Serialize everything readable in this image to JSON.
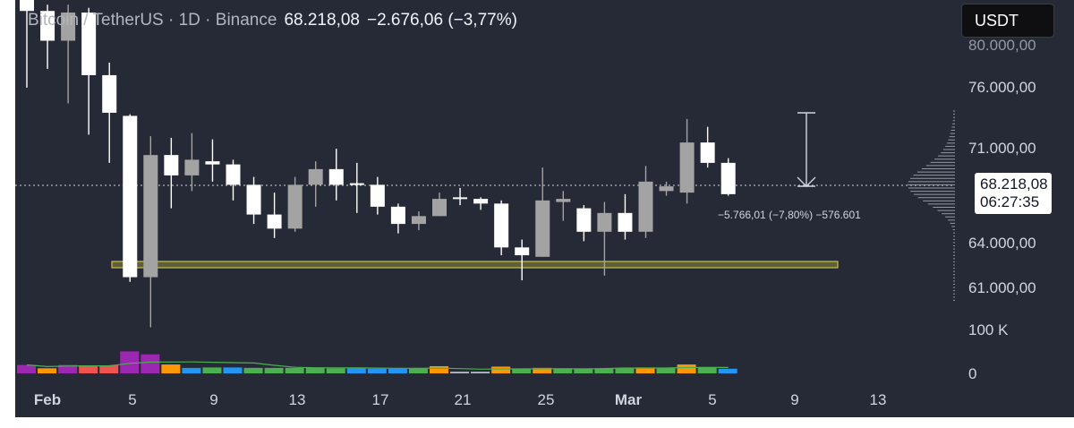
{
  "header": {
    "symbol": "Bitcoin / TetherUS · 1D · Binance",
    "last_price": "68.218,08",
    "change": "−2.676,06 (−3,77%)"
  },
  "toolbar": {
    "currency_label": "USDT"
  },
  "price_axis": {
    "labels": [
      "76.000,00",
      "71.000,00",
      "64.000,00",
      "61.000,00"
    ],
    "partial_top_label": "80.000,00",
    "current_price": "68.218,08",
    "countdown": "06:27:35"
  },
  "volume_axis": {
    "labels": [
      "100 K",
      "0"
    ]
  },
  "time_axis": {
    "labels": [
      "Feb",
      "5",
      "9",
      "13",
      "17",
      "21",
      "25",
      "Mar",
      "5",
      "9",
      "13"
    ],
    "bold": [
      true,
      false,
      false,
      false,
      false,
      false,
      false,
      true,
      false,
      false,
      false
    ]
  },
  "measure_label": "−5.766,01 (−7,80%) −576.601",
  "colors": {
    "background": "#262a36",
    "up_candle": "#a3a3a3",
    "down_candle": "#ffffff",
    "support_zone": "#c8c247",
    "volume_purple": "#9c27b0",
    "volume_red": "#ef5350",
    "volume_orange": "#ff9800",
    "volume_green": "#4caf50",
    "volume_blue": "#2196f3",
    "volume_grey": "#b2b5be",
    "volume_ma_line": "#4caf50"
  },
  "chart_data": {
    "type": "candlestick",
    "interval": "1D",
    "ylim": [
      58300,
      80600
    ],
    "candles": [
      {
        "label": "Jan 31",
        "open": 83500,
        "high": 84000,
        "low": 75000,
        "close": 79900
      },
      {
        "label": "Feb 1",
        "open": 79900,
        "high": 80300,
        "low": 76200,
        "close": 78000
      },
      {
        "label": "Feb 2",
        "open": 78000,
        "high": 80300,
        "low": 74000,
        "close": 79800
      },
      {
        "label": "Feb 3",
        "open": 79800,
        "high": 80100,
        "low": 72000,
        "close": 75800
      },
      {
        "label": "Feb 4",
        "open": 75800,
        "high": 76600,
        "low": 70200,
        "close": 73400
      },
      {
        "label": "Feb 5",
        "open": 73200,
        "high": 73300,
        "low": 62600,
        "close": 62900
      },
      {
        "label": "Feb 6",
        "open": 62900,
        "high": 71900,
        "low": 59700,
        "close": 70700
      },
      {
        "label": "Feb 7",
        "open": 70700,
        "high": 71800,
        "low": 67300,
        "close": 69400
      },
      {
        "label": "Feb 8",
        "open": 69400,
        "high": 72100,
        "low": 68400,
        "close": 70400
      },
      {
        "label": "Feb 9",
        "open": 70300,
        "high": 71700,
        "low": 69000,
        "close": 70100
      },
      {
        "label": "Feb 10",
        "open": 70100,
        "high": 70400,
        "low": 67800,
        "close": 68800
      },
      {
        "label": "Feb 11",
        "open": 68800,
        "high": 69300,
        "low": 66300,
        "close": 66900
      },
      {
        "label": "Feb 12",
        "open": 66900,
        "high": 68300,
        "low": 65400,
        "close": 66000
      },
      {
        "label": "Feb 13",
        "open": 66000,
        "high": 69300,
        "low": 65800,
        "close": 68800
      },
      {
        "label": "Feb 14",
        "open": 68800,
        "high": 70300,
        "low": 67400,
        "close": 69800
      },
      {
        "label": "Feb 15",
        "open": 69800,
        "high": 71100,
        "low": 67800,
        "close": 68800
      },
      {
        "label": "Feb 16",
        "open": 68900,
        "high": 70200,
        "low": 67000,
        "close": 68800
      },
      {
        "label": "Feb 17",
        "open": 68800,
        "high": 69300,
        "low": 66900,
        "close": 67400
      },
      {
        "label": "Feb 18",
        "open": 67400,
        "high": 67600,
        "low": 65700,
        "close": 66300
      },
      {
        "label": "Feb 19",
        "open": 66300,
        "high": 67100,
        "low": 65900,
        "close": 66800
      },
      {
        "label": "Feb 20",
        "open": 66800,
        "high": 68300,
        "low": 66800,
        "close": 67900
      },
      {
        "label": "Feb 21",
        "open": 68000,
        "high": 68600,
        "low": 67500,
        "close": 67900
      },
      {
        "label": "Feb 22",
        "open": 67900,
        "high": 68000,
        "low": 67200,
        "close": 67600
      },
      {
        "label": "Feb 23",
        "open": 67600,
        "high": 67800,
        "low": 64300,
        "close": 64800
      },
      {
        "label": "Feb 24",
        "open": 64800,
        "high": 65300,
        "low": 62700,
        "close": 64300
      },
      {
        "label": "Feb 25",
        "open": 64200,
        "high": 69900,
        "low": 64200,
        "close": 67800
      },
      {
        "label": "Feb 26",
        "open": 67700,
        "high": 68400,
        "low": 66500,
        "close": 67900
      },
      {
        "label": "Feb 27",
        "open": 67300,
        "high": 67500,
        "low": 65200,
        "close": 65800
      },
      {
        "label": "Feb 28",
        "open": 65800,
        "high": 67700,
        "low": 63000,
        "close": 67000
      },
      {
        "label": "Mar 1",
        "open": 67000,
        "high": 68200,
        "low": 65300,
        "close": 65800
      },
      {
        "label": "Mar 2",
        "open": 65800,
        "high": 70000,
        "low": 65400,
        "close": 69000
      },
      {
        "label": "Mar 3",
        "open": 68400,
        "high": 69000,
        "low": 68100,
        "close": 68700
      },
      {
        "label": "Mar 4",
        "open": 68300,
        "high": 73000,
        "low": 67600,
        "close": 71500
      },
      {
        "label": "Mar 5",
        "open": 71500,
        "high": 72500,
        "low": 69900,
        "close": 70200
      },
      {
        "label": "Mar 6",
        "open": 70200,
        "high": 70500,
        "low": 68100,
        "close": 68200
      }
    ],
    "volume": [
      20,
      12,
      20,
      19,
      19,
      52,
      45,
      21,
      13,
      14,
      14,
      13,
      13,
      13,
      13,
      12,
      12,
      11,
      11,
      11,
      17,
      4,
      4,
      16,
      11,
      13,
      12,
      12,
      12,
      13,
      14,
      13,
      21,
      13,
      11
    ],
    "volume_colors": [
      "purple",
      "orange",
      "purple",
      "red",
      "red",
      "purple",
      "purple",
      "orange",
      "blue",
      "green",
      "blue",
      "green",
      "green",
      "green",
      "green",
      "green",
      "blue",
      "blue",
      "blue",
      "green",
      "orange",
      "grey",
      "grey",
      "orange",
      "green",
      "orange",
      "green",
      "green",
      "green",
      "green",
      "orange",
      "green",
      "orange",
      "green",
      "blue"
    ],
    "volume_ylim": [
      0,
      110
    ]
  }
}
